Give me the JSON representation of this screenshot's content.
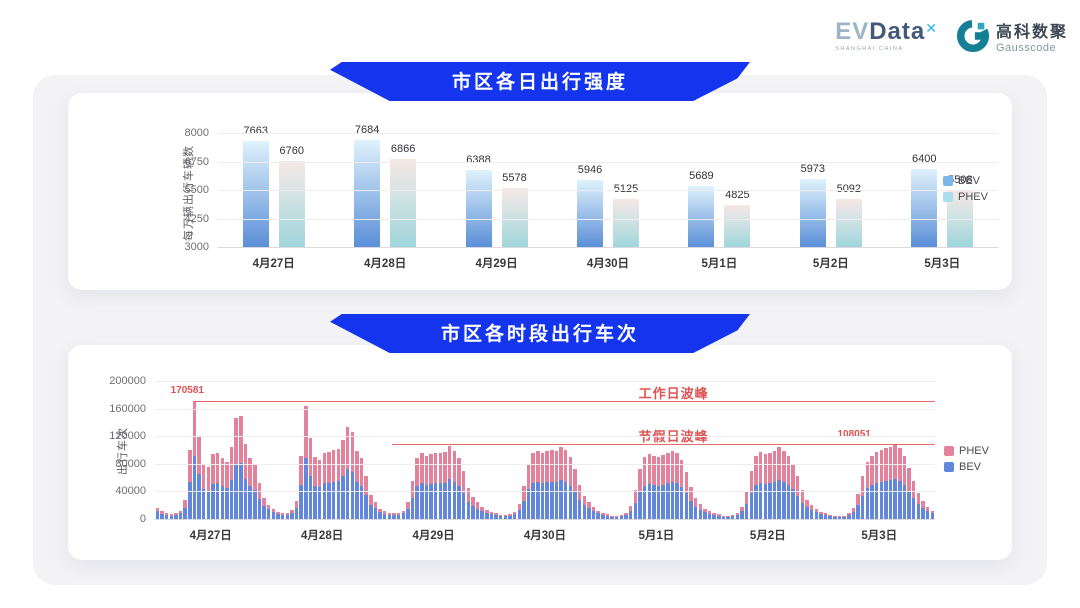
{
  "logos": {
    "evdata": {
      "ev": "EV",
      "data": "Data",
      "mark": "✕",
      "sub": "SHANGHAI CHINA"
    },
    "gausscode": {
      "cn": "高科数聚",
      "en": "Gausscode"
    }
  },
  "colors": {
    "banner_blue": "#1434ee",
    "bev_bar_top": "#dff2fc",
    "bev_bar_bottom": "#5b8fd8",
    "phev_bar_top": "#f6e7e3",
    "phev_bar_bottom": "#9fd6dc",
    "c2_bev": "#6287dd",
    "c2_phev": "#e5829b",
    "annotation_red": "#e05252"
  },
  "chart_data": [
    {
      "type": "bar",
      "title": "市区各日出行强度",
      "ylabel": "每万辆出行车辆数",
      "ylim": [
        3000,
        8000
      ],
      "yticks": [
        8000,
        6750,
        5500,
        4250,
        3000
      ],
      "grid": true,
      "legend_position": "right",
      "categories": [
        "4月27日",
        "4月28日",
        "4月29日",
        "4月30日",
        "5月1日",
        "5月2日",
        "5月3日"
      ],
      "series": [
        {
          "name": "BEV",
          "color": "#7cb5e8",
          "values": [
            7663,
            7684,
            6388,
            5946,
            5689,
            5973,
            6400
          ]
        },
        {
          "name": "PHEV",
          "color": "#a9ddee",
          "values": [
            6760,
            6866,
            5578,
            5125,
            4825,
            5092,
            5508
          ]
        }
      ]
    },
    {
      "type": "bar",
      "subtype": "stacked-hourly",
      "title": "市区各时段出行车次",
      "ylabel": "出行车次",
      "ylim": [
        0,
        200000
      ],
      "yticks": [
        200000,
        160000,
        120000,
        80000,
        40000,
        0
      ],
      "grid": true,
      "legend_position": "right",
      "legend": [
        {
          "label": "PHEV",
          "color": "#e5829b"
        },
        {
          "label": "BEV",
          "color": "#6287dd"
        }
      ],
      "categories": [
        "4月27日",
        "4月28日",
        "4月29日",
        "4月30日",
        "5月1日",
        "5月2日",
        "5月3日"
      ],
      "hours_per_day": 24,
      "annotations": [
        {
          "name": "weekday-peak",
          "label": "工作日波峰",
          "value": 170581,
          "value_label": "170581"
        },
        {
          "name": "holiday-peak",
          "label": "节假日波峰",
          "value": 108051,
          "value_label": "108051"
        }
      ],
      "days": [
        {
          "date": "4月27日",
          "bev": [
            11000,
            7500,
            5500,
            5000,
            5500,
            8500,
            16000,
            54000,
            91000,
            65000,
            43000,
            41000,
            51000,
            52000,
            47500,
            44500,
            56500,
            79000,
            80500,
            58500,
            47500,
            42000,
            29500,
            19000
          ],
          "phev": [
            5000,
            3500,
            2500,
            2000,
            2500,
            3500,
            11000,
            46000,
            79581,
            55000,
            37000,
            35000,
            43000,
            44000,
            40500,
            37500,
            48500,
            67000,
            68500,
            49500,
            40500,
            36000,
            22500,
            11000
          ]
        },
        {
          "date": "4月28日",
          "bev": [
            14000,
            9500,
            7000,
            5500,
            6000,
            9000,
            15500,
            50000,
            88000,
            63000,
            48500,
            46500,
            51500,
            52500,
            54000,
            55000,
            62000,
            72500,
            68000,
            53000,
            47500,
            35500,
            21000,
            16000
          ],
          "phev": [
            6000,
            4500,
            3000,
            2500,
            3000,
            4000,
            10500,
            42000,
            76000,
            54000,
            41500,
            39500,
            43500,
            44500,
            46000,
            47000,
            53000,
            61500,
            58000,
            45000,
            40500,
            27500,
            14000,
            9000
          ]
        },
        {
          "date": "4月29日",
          "bev": [
            10500,
            7500,
            6000,
            5500,
            6000,
            8500,
            15000,
            30000,
            47500,
            51500,
            50000,
            51000,
            52000,
            51500,
            52500,
            57500,
            53000,
            47500,
            38000,
            25000,
            19000,
            15000,
            11500,
            9000
          ],
          "phev": [
            4500,
            3500,
            3000,
            2500,
            3000,
            3500,
            10000,
            25000,
            40500,
            43500,
            42000,
            43000,
            44000,
            43500,
            44500,
            48500,
            45000,
            40500,
            32000,
            20000,
            13000,
            9000,
            5500,
            4000
          ]
        },
        {
          "date": "4月30日",
          "bev": [
            7000,
            5500,
            4000,
            4000,
            5000,
            7000,
            13000,
            26000,
            43000,
            52000,
            53000,
            51500,
            53500,
            54000,
            53000,
            57000,
            54000,
            48500,
            39000,
            27500,
            20500,
            15500,
            11500,
            8500
          ],
          "phev": [
            3000,
            2500,
            2000,
            2000,
            2000,
            3000,
            9000,
            22000,
            37000,
            44000,
            45000,
            43500,
            45500,
            46000,
            45000,
            48000,
            46000,
            41500,
            33000,
            22500,
            13500,
            9500,
            5500,
            3500
          ]
        },
        {
          "date": "5月1日",
          "bev": [
            6500,
            5000,
            3500,
            3500,
            4000,
            6500,
            11500,
            23000,
            39000,
            48500,
            51000,
            49500,
            48500,
            50000,
            52000,
            53500,
            52000,
            46500,
            37000,
            25500,
            18000,
            13500,
            10500,
            7500
          ],
          "phev": [
            2500,
            2000,
            1500,
            1500,
            2000,
            2500,
            7500,
            19000,
            33000,
            41500,
            43000,
            42500,
            41500,
            43000,
            44000,
            45500,
            44000,
            39500,
            31000,
            20500,
            12000,
            8500,
            4500,
            3500
          ]
        },
        {
          "date": "5月2日",
          "bev": [
            6500,
            5000,
            3500,
            3500,
            4000,
            6500,
            11000,
            22000,
            38000,
            49500,
            52500,
            51000,
            52000,
            53500,
            56000,
            53000,
            49500,
            43000,
            33500,
            23500,
            17000,
            12500,
            9500,
            7000
          ],
          "phev": [
            2500,
            2000,
            1500,
            1500,
            2000,
            2500,
            7000,
            18000,
            32000,
            42500,
            44500,
            43000,
            44000,
            45500,
            48000,
            45000,
            42500,
            37000,
            28500,
            18500,
            11000,
            7500,
            4500,
            3000
          ]
        },
        {
          "date": "5月3日",
          "bev": [
            5500,
            4000,
            3500,
            3000,
            3500,
            5500,
            10000,
            20000,
            33500,
            44500,
            49500,
            52500,
            54000,
            55500,
            56500,
            58000,
            55500,
            49500,
            40000,
            30000,
            22000,
            16000,
            11500,
            8500
          ],
          "phev": [
            2500,
            2000,
            1500,
            1000,
            1500,
            2500,
            6000,
            16000,
            28500,
            37500,
            42500,
            44500,
            46000,
            47500,
            48500,
            50051,
            47500,
            42500,
            34000,
            25000,
            16000,
            10000,
            5500,
            3500
          ]
        }
      ]
    }
  ]
}
